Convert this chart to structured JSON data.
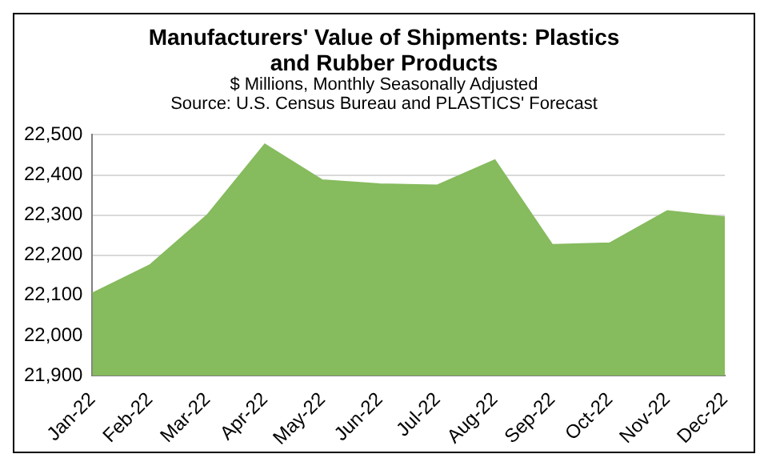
{
  "chart_data": {
    "type": "area",
    "title": "Manufacturers' Value of Shipments: Plastics and Rubber Products",
    "subtitle": "$ Millions, Monthly Seasonally Adjusted",
    "annotations": [
      "Source: U.S. Census Bureau and PLASTICS' Forecast"
    ],
    "categories": [
      "Jan-22",
      "Feb-22",
      "Mar-22",
      "Apr-22",
      "May-22",
      "Jun-22",
      "Jul-22",
      "Aug-22",
      "Sep-22",
      "Oct-22",
      "Nov-22",
      "Dec-22"
    ],
    "series": [
      {
        "color": "#86bb5e",
        "values": [
          22105,
          22175,
          22300,
          22476,
          22387,
          22377,
          22374,
          22437,
          22226,
          22230,
          22310,
          22295
        ]
      }
    ],
    "ylim": [
      21900,
      22500
    ],
    "yticks": [
      {
        "value": 21900,
        "label": "21,900"
      },
      {
        "value": 22000,
        "label": "22,000"
      },
      {
        "value": 22100,
        "label": "22,100"
      },
      {
        "value": 22200,
        "label": "22,200"
      },
      {
        "value": 22300,
        "label": "22,300"
      },
      {
        "value": 22400,
        "label": "22,400"
      },
      {
        "value": 22500,
        "label": "22,500"
      }
    ],
    "grid": "y",
    "legend": false
  }
}
